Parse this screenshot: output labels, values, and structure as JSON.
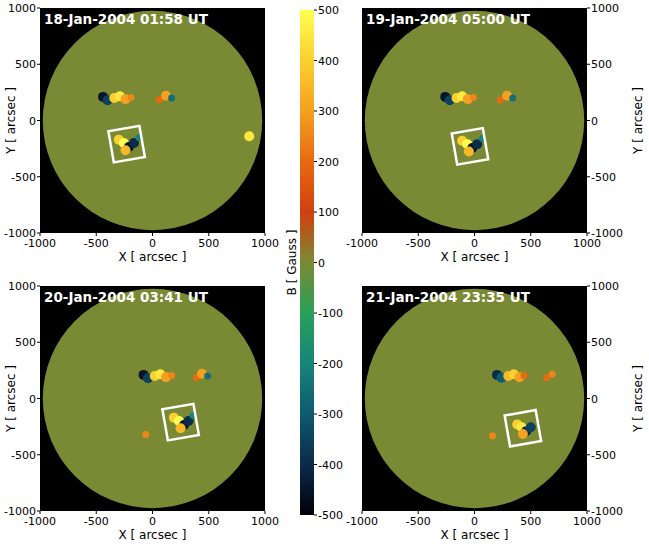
{
  "chart_data": {
    "type": "heatmap",
    "colorbar": {
      "label": "B [ Gauss ]",
      "range": [
        -500,
        500
      ],
      "ticks": [
        -500,
        -400,
        -300,
        -200,
        -100,
        0,
        100,
        200,
        300,
        400,
        500
      ],
      "colors": [
        "#000008",
        "#0c2a4a",
        "#0e5a6e",
        "#17847a",
        "#2aa05a",
        "#7a8a34",
        "#d04010",
        "#e86a10",
        "#f4a020",
        "#fad030",
        "#ffff50"
      ]
    },
    "disk_radius": 975,
    "panels": [
      {
        "title": "18-Jan-2004 01:58 UT",
        "x_label": "X [ arcsec ]",
        "y_label": "Y [ arcsec ]",
        "xlim": [
          -1000,
          1000
        ],
        "ylim": [
          -1000,
          1000
        ],
        "xticks": [
          -1000,
          -500,
          0,
          500,
          1000
        ],
        "yticks": [
          -1000,
          -500,
          0,
          500,
          1000
        ],
        "box": {
          "center": [
            -230,
            -210
          ],
          "size": 280
        },
        "regions": [
          {
            "x": -440,
            "y": 210,
            "B": -450
          },
          {
            "x": -400,
            "y": 180,
            "B": -350
          },
          {
            "x": -340,
            "y": 200,
            "B": 400
          },
          {
            "x": -290,
            "y": 215,
            "B": 450
          },
          {
            "x": -240,
            "y": 190,
            "B": 300
          },
          {
            "x": -190,
            "y": 205,
            "B": 250
          },
          {
            "x": 60,
            "y": 185,
            "B": 200
          },
          {
            "x": 120,
            "y": 220,
            "B": 300
          },
          {
            "x": 170,
            "y": 200,
            "B": -250
          },
          {
            "x": -300,
            "y": -170,
            "B": 400
          },
          {
            "x": -255,
            "y": -200,
            "B": 500
          },
          {
            "x": -210,
            "y": -235,
            "B": -450
          },
          {
            "x": -165,
            "y": -200,
            "B": -400
          },
          {
            "x": -240,
            "y": -265,
            "B": 350
          },
          {
            "x": -120,
            "y": -150,
            "B": -200
          },
          {
            "x": 860,
            "y": -140,
            "B": 450
          }
        ]
      },
      {
        "title": "19-Jan-2004 05:00 UT",
        "x_label": "X [ arcsec ]",
        "y_label": "Y [ arcsec ]",
        "xlim": [
          -1000,
          1000
        ],
        "ylim": [
          -1000,
          1000
        ],
        "xticks": [
          -1000,
          -500,
          0,
          500,
          1000
        ],
        "yticks": [
          -1000,
          -500,
          0,
          500,
          1000
        ],
        "box": {
          "center": [
            -40,
            -230
          ],
          "size": 280
        },
        "regions": [
          {
            "x": -260,
            "y": 210,
            "B": -450
          },
          {
            "x": -220,
            "y": 180,
            "B": -350
          },
          {
            "x": -160,
            "y": 200,
            "B": 400
          },
          {
            "x": -110,
            "y": 215,
            "B": 450
          },
          {
            "x": -60,
            "y": 190,
            "B": 300
          },
          {
            "x": -10,
            "y": 205,
            "B": 250
          },
          {
            "x": 230,
            "y": 185,
            "B": 200
          },
          {
            "x": 290,
            "y": 220,
            "B": 300
          },
          {
            "x": 340,
            "y": 200,
            "B": -250
          },
          {
            "x": -110,
            "y": -180,
            "B": 400
          },
          {
            "x": -65,
            "y": -210,
            "B": 500
          },
          {
            "x": -20,
            "y": -245,
            "B": -450
          },
          {
            "x": 25,
            "y": -210,
            "B": -400
          },
          {
            "x": -50,
            "y": -275,
            "B": 350
          },
          {
            "x": 70,
            "y": -160,
            "B": -200
          }
        ]
      },
      {
        "title": "20-Jan-2004 03:41 UT",
        "x_label": "X [ arcsec ]",
        "y_label": "Y [ arcsec ]",
        "xlim": [
          -1000,
          1000
        ],
        "ylim": [
          -1000,
          1000
        ],
        "xticks": [
          -1000,
          -500,
          0,
          500,
          1000
        ],
        "yticks": [
          -1000,
          -500,
          0,
          500,
          1000
        ],
        "box": {
          "center": [
            250,
            -210
          ],
          "size": 280
        },
        "regions": [
          {
            "x": -80,
            "y": 210,
            "B": -450
          },
          {
            "x": -40,
            "y": 180,
            "B": -350
          },
          {
            "x": 20,
            "y": 200,
            "B": 400
          },
          {
            "x": 70,
            "y": 215,
            "B": 450
          },
          {
            "x": 120,
            "y": 190,
            "B": 300
          },
          {
            "x": 170,
            "y": 205,
            "B": 250
          },
          {
            "x": 390,
            "y": 185,
            "B": 200
          },
          {
            "x": 440,
            "y": 220,
            "B": 300
          },
          {
            "x": 490,
            "y": 200,
            "B": -250
          },
          {
            "x": 190,
            "y": -170,
            "B": 400
          },
          {
            "x": 235,
            "y": -200,
            "B": 500
          },
          {
            "x": 280,
            "y": -235,
            "B": -450
          },
          {
            "x": 320,
            "y": -200,
            "B": -400
          },
          {
            "x": 250,
            "y": -265,
            "B": 350
          },
          {
            "x": 360,
            "y": -150,
            "B": -200
          },
          {
            "x": -60,
            "y": -320,
            "B": 250
          }
        ]
      },
      {
        "title": "21-Jan-2004 23:35 UT",
        "x_label": "X [ arcsec ]",
        "y_label": "Y [ arcsec ]",
        "xlim": [
          -1000,
          1000
        ],
        "ylim": [
          -1000,
          1000
        ],
        "xticks": [
          -1000,
          -500,
          0,
          500,
          1000
        ],
        "yticks": [
          -1000,
          -500,
          0,
          500,
          1000
        ],
        "box": {
          "center": [
            430,
            -265
          ],
          "size": 280
        },
        "regions": [
          {
            "x": 200,
            "y": 210,
            "B": -400
          },
          {
            "x": 240,
            "y": 185,
            "B": -300
          },
          {
            "x": 300,
            "y": 200,
            "B": 350
          },
          {
            "x": 350,
            "y": 215,
            "B": 400
          },
          {
            "x": 400,
            "y": 190,
            "B": 300
          },
          {
            "x": 440,
            "y": 205,
            "B": 200
          },
          {
            "x": 640,
            "y": 185,
            "B": 200
          },
          {
            "x": 690,
            "y": 215,
            "B": 250
          },
          {
            "x": 380,
            "y": -230,
            "B": 400
          },
          {
            "x": 420,
            "y": -255,
            "B": 450
          },
          {
            "x": 460,
            "y": -290,
            "B": -400
          },
          {
            "x": 500,
            "y": -255,
            "B": -350
          },
          {
            "x": 430,
            "y": -315,
            "B": 300
          },
          {
            "x": 160,
            "y": -330,
            "B": 250
          }
        ]
      }
    ]
  }
}
